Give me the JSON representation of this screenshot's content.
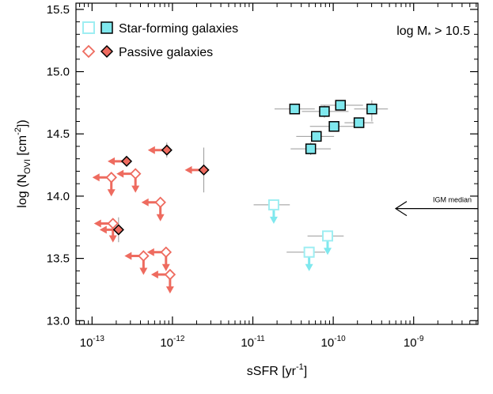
{
  "chart_data": {
    "type": "scatter",
    "title": "",
    "xlabel": "sSFR [yr",
    "xlabel_sup": "-1",
    "xlabel_end": "]",
    "ylabel": "log (N",
    "ylabel_sub": "OVI",
    "ylabel_mid": " [cm",
    "ylabel_sup": "-2",
    "ylabel_end": "])",
    "xscale": "log",
    "xlim_log10": [
      -13.2,
      -8.2
    ],
    "ylim": [
      12.97,
      15.55
    ],
    "x_ticks": [
      {
        "base": "10",
        "exp": "-13",
        "log": -13
      },
      {
        "base": "10",
        "exp": "-12",
        "log": -12
      },
      {
        "base": "10",
        "exp": "-11",
        "log": -11
      },
      {
        "base": "10",
        "exp": "-10",
        "log": -10
      },
      {
        "base": "10",
        "exp": "-9",
        "log": -9
      }
    ],
    "y_ticks": [
      "13.0",
      "13.5",
      "14.0",
      "14.5",
      "15.0",
      "15.5"
    ],
    "grid": false,
    "legend_placement": "top-left",
    "annotation": {
      "text": "log M",
      "sub": "*",
      "tail": " > 10.5"
    },
    "reference_line": {
      "label": "IGM median",
      "y": 13.9
    },
    "colors": {
      "star_forming": "#7fe8ee",
      "star_forming_open": "#9eeef2",
      "passive": "#ee6b5f",
      "error_bar": "#999999",
      "outline": "#000000"
    },
    "series": [
      {
        "name": "Star-forming galaxies",
        "legend_open_label_marker": "open-square",
        "legend_filled_label_marker": "filled-square",
        "detections": [
          {
            "x_log10": -10.48,
            "y": 14.7,
            "xerr": [
              0.25,
              0.25
            ],
            "yerr": [
              0.0,
              0.0
            ]
          },
          {
            "x_log10": -10.11,
            "y": 14.68,
            "xerr": [
              0.28,
              0.3
            ],
            "yerr": [
              0.05,
              0.05
            ]
          },
          {
            "x_log10": -9.91,
            "y": 14.73,
            "xerr": [
              0.25,
              0.28
            ],
            "yerr": [
              0.0,
              0.0
            ]
          },
          {
            "x_log10": -9.52,
            "y": 14.7,
            "xerr": [
              0.22,
              0.2
            ],
            "yerr": [
              0.1,
              0.07
            ]
          },
          {
            "x_log10": -9.68,
            "y": 14.59,
            "xerr": [
              0.18,
              0.18
            ],
            "yerr": [
              0.0,
              0.0
            ]
          },
          {
            "x_log10": -9.99,
            "y": 14.56,
            "xerr": [
              0.3,
              0.3
            ],
            "yerr": [
              0.0,
              0.0
            ]
          },
          {
            "x_log10": -10.21,
            "y": 14.48,
            "xerr": [
              0.25,
              0.22
            ],
            "yerr": [
              0.0,
              0.0
            ]
          },
          {
            "x_log10": -10.28,
            "y": 14.38,
            "xerr": [
              0.25,
              0.25
            ],
            "yerr": [
              0.05,
              0.05
            ]
          }
        ],
        "upper_limits": [
          {
            "x_log10": -10.74,
            "y": 13.93,
            "xerr": [
              0.25,
              0.2
            ]
          },
          {
            "x_log10": -10.07,
            "y": 13.68,
            "xerr": [
              0.25,
              0.2
            ]
          },
          {
            "x_log10": -10.3,
            "y": 13.55,
            "xerr": [
              0.28,
              0.2
            ]
          }
        ]
      },
      {
        "name": "Passive galaxies",
        "legend_open_label_marker": "open-diamond",
        "legend_filled_label_marker": "filled-diamond",
        "detections": [
          {
            "x_log10": -12.57,
            "y": 14.28,
            "xerr": [
              0.0,
              0.0
            ],
            "yerr": [
              0.0,
              0.0
            ]
          },
          {
            "x_log10": -12.07,
            "y": 14.37,
            "xerr": [
              0.0,
              0.0
            ],
            "yerr": [
              0.06,
              0.06
            ]
          },
          {
            "x_log10": -11.61,
            "y": 14.21,
            "xerr": [
              0.0,
              0.0
            ],
            "yerr": [
              0.18,
              0.18
            ]
          },
          {
            "x_log10": -12.67,
            "y": 13.73,
            "xerr": [
              0.0,
              0.0
            ],
            "yerr": [
              0.1,
              0.1
            ]
          }
        ],
        "limits": [
          {
            "x_log10": -12.46,
            "y": 14.18,
            "kind": "both"
          },
          {
            "x_log10": -12.76,
            "y": 14.15,
            "kind": "both"
          },
          {
            "x_log10": -12.15,
            "y": 13.95,
            "kind": "both"
          },
          {
            "x_log10": -12.74,
            "y": 13.78,
            "kind": "both"
          },
          {
            "x_log10": -12.36,
            "y": 13.52,
            "kind": "both"
          },
          {
            "x_log10": -12.08,
            "y": 13.55,
            "kind": "both"
          },
          {
            "x_log10": -12.03,
            "y": 13.37,
            "kind": "both"
          }
        ]
      }
    ]
  }
}
